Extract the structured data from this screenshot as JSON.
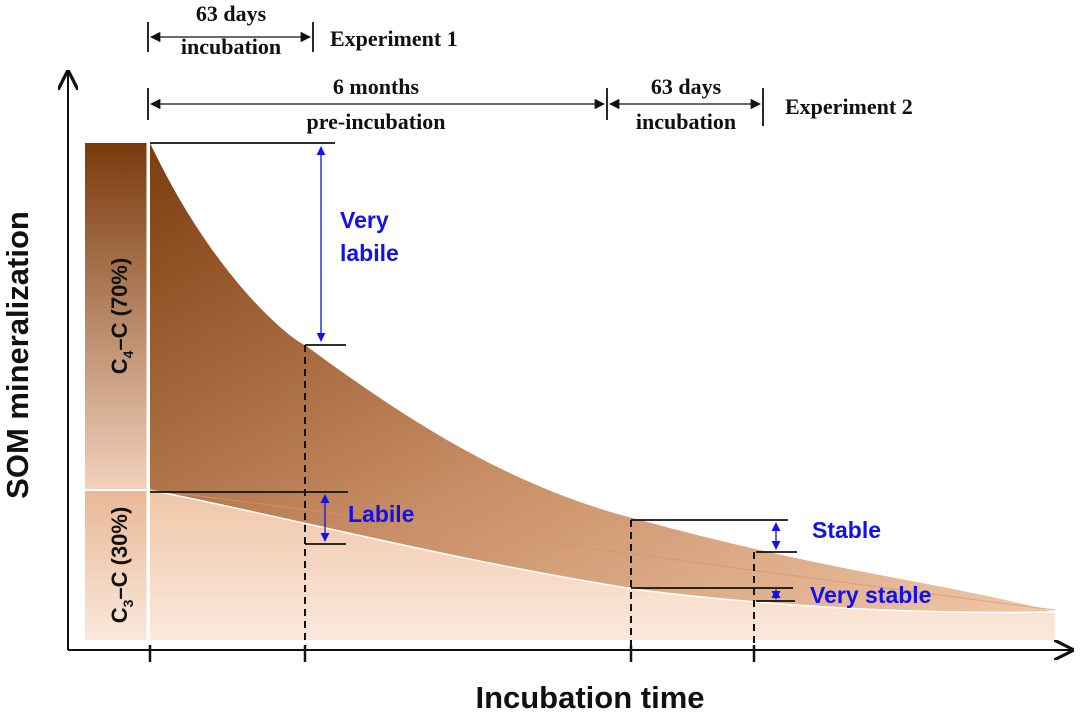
{
  "axes": {
    "y_title": "SOM mineralization",
    "x_title": "Incubation time"
  },
  "experiment1": {
    "duration_line1": "63 days",
    "duration_line2": "incubation",
    "label": "Experiment 1"
  },
  "experiment2": {
    "pre_line1": "6 months",
    "pre_line2": "pre-incubation",
    "duration_line1": "63 days",
    "duration_line2": "incubation",
    "label": "Experiment 2"
  },
  "pools": {
    "very_labile_line1": "Very",
    "very_labile_line2": "labile",
    "labile": "Labile",
    "stable": "Stable",
    "very_stable": "Very stable"
  },
  "bars": {
    "c4": {
      "letter": "C",
      "sub": "4",
      "rest": "–C (70%)"
    },
    "c3": {
      "letter": "C",
      "sub": "3",
      "rest": "–C (30%)"
    }
  },
  "colors": {
    "dark_brown": "#7a3a0c",
    "light_peach": "#f7dccb",
    "annotation_blue": "#1111ee"
  }
}
